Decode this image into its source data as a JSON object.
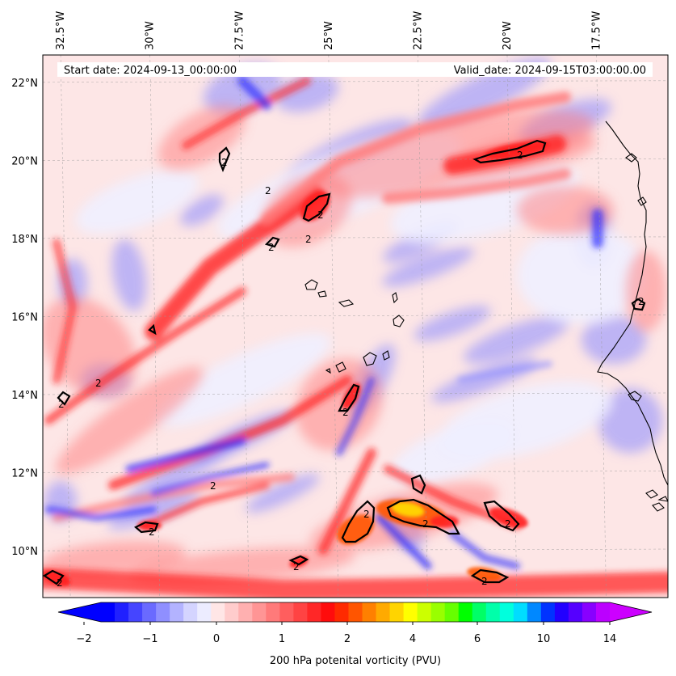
{
  "header": {
    "start_date": "Start date: 2024-09-13_00:00:00",
    "valid_date": "Valid_date: 2024-09-15T03:00:00.00"
  },
  "map": {
    "projection_extent": {
      "lon_min": -33.0,
      "lon_max": -15.5,
      "lat_min": 8.8,
      "lat_max": 22.7
    },
    "lon_labels": [
      "32.5°W",
      "30°W",
      "27.5°W",
      "25°W",
      "22.5°W",
      "20°W",
      "17.5°W"
    ],
    "lon_values": [
      -32.5,
      -30,
      -27.5,
      -25,
      -22.5,
      -20,
      -17.5
    ],
    "lat_labels": [
      "22°N",
      "20°N",
      "18°N",
      "16°N",
      "14°N",
      "12°N",
      "10°N"
    ],
    "lat_values": [
      22,
      20,
      18,
      16,
      14,
      12,
      10
    ],
    "contour_label": "2",
    "field_colors": {
      "strong_neg": "#2a2aff",
      "neg": "#8a8aff",
      "weak_neg": "#d6d6ff",
      "near_zero": "#f0f0ff",
      "weak_pos": "#ffe0e0",
      "pos": "#ff7c7c",
      "strong_pos": "#ff2020",
      "very_strong": "#ff5500",
      "peak": "#ffe000"
    }
  },
  "colorbar": {
    "label": "200 hPa potenital vorticity (PVU)",
    "tick_labels": [
      "−2",
      "−1",
      "0",
      "1",
      "2",
      "4",
      "6",
      "10",
      "14"
    ],
    "colors": [
      "#0000ff",
      "#2020ff",
      "#4545ff",
      "#6a6aff",
      "#8f8fff",
      "#b3b3ff",
      "#d4d4ff",
      "#ececff",
      "#ffe6e6",
      "#ffcccc",
      "#ffb0b0",
      "#ff9595",
      "#ff7a7a",
      "#ff5e5e",
      "#ff4343",
      "#ff2727",
      "#ff0c0c",
      "#ff2a00",
      "#ff5500",
      "#ff8000",
      "#ffaa00",
      "#ffd400",
      "#ffff00",
      "#ccff00",
      "#99ff00",
      "#66ff00",
      "#00ff00",
      "#00ff66",
      "#00ffaa",
      "#00ffdd",
      "#00ddff",
      "#0088ff",
      "#0033ff",
      "#2200ff",
      "#5500ff",
      "#8800ff",
      "#bb00ff"
    ],
    "under_color": "#0000ff",
    "over_color": "#cc00ff"
  }
}
